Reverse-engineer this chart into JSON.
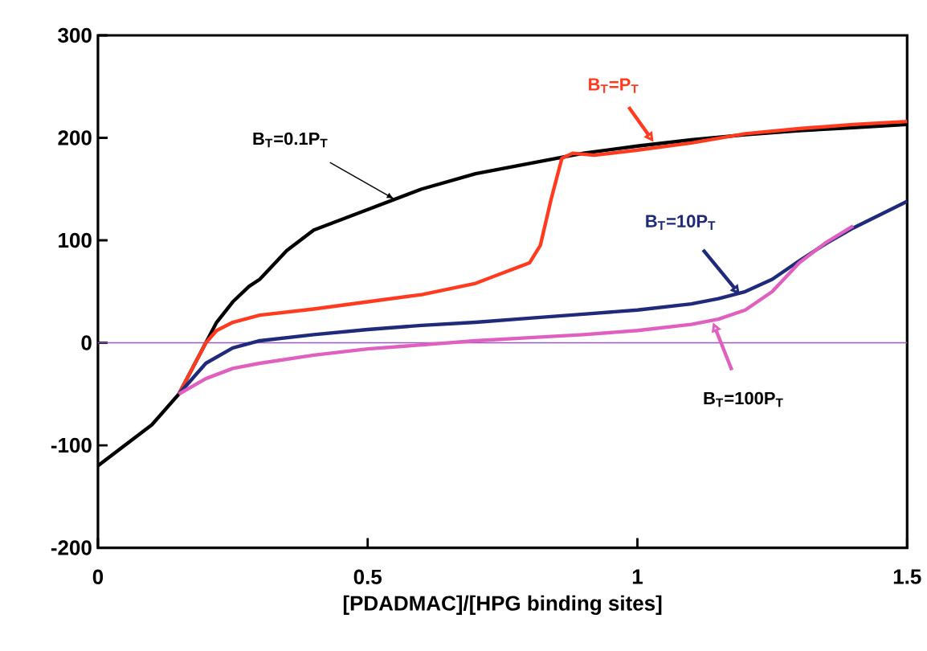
{
  "chart_data": {
    "type": "line",
    "xlabel": "[PDADMAC]/[HPG binding sites]",
    "xlim": [
      0,
      1.5
    ],
    "ylim": [
      -200,
      300
    ],
    "xticks": [
      0,
      0.5,
      1,
      1.5
    ],
    "yticks": [
      -200,
      -100,
      0,
      100,
      200,
      300
    ],
    "series": [
      {
        "color": "#000000",
        "x": [
          0,
          0.05,
          0.1,
          0.15,
          0.18,
          0.2,
          0.22,
          0.25,
          0.28,
          0.3,
          0.35,
          0.4,
          0.5,
          0.6,
          0.7,
          0.8,
          0.9,
          1.0,
          1.1,
          1.2,
          1.3,
          1.4,
          1.5
        ],
        "values": [
          -120,
          -100,
          -80,
          -50,
          -20,
          0,
          20,
          40,
          55,
          62,
          90,
          110,
          130,
          150,
          165,
          175,
          185,
          192,
          198,
          203,
          207,
          210,
          213
        ]
      },
      {
        "color": "#ff3b1f",
        "x": [
          0.15,
          0.18,
          0.2,
          0.22,
          0.25,
          0.3,
          0.4,
          0.5,
          0.6,
          0.7,
          0.75,
          0.78,
          0.8,
          0.82,
          0.84,
          0.86,
          0.88,
          0.92,
          1.0,
          1.1,
          1.2,
          1.3,
          1.4,
          1.5
        ],
        "values": [
          -50,
          -20,
          0,
          12,
          20,
          27,
          33,
          40,
          47,
          58,
          68,
          74,
          78,
          95,
          140,
          180,
          185,
          183,
          188,
          195,
          204,
          209,
          213,
          216
        ]
      },
      {
        "color": "#1f2a7a",
        "x": [
          0.15,
          0.2,
          0.25,
          0.3,
          0.4,
          0.5,
          0.6,
          0.7,
          0.8,
          0.9,
          1.0,
          1.1,
          1.15,
          1.2,
          1.25,
          1.3,
          1.35,
          1.4,
          1.45,
          1.5
        ],
        "values": [
          -50,
          -20,
          -5,
          2,
          8,
          13,
          17,
          20,
          24,
          28,
          32,
          38,
          43,
          50,
          62,
          80,
          97,
          112,
          125,
          138
        ]
      },
      {
        "color": "#e060c0",
        "x": [
          0.15,
          0.2,
          0.25,
          0.3,
          0.4,
          0.5,
          0.6,
          0.7,
          0.8,
          0.9,
          1.0,
          1.1,
          1.15,
          1.2,
          1.25,
          1.3,
          1.35,
          1.4
        ],
        "values": [
          -50,
          -35,
          -25,
          -20,
          -12,
          -6,
          -2,
          2,
          5,
          8,
          12,
          18,
          23,
          32,
          50,
          78,
          98,
          114
        ]
      }
    ],
    "ref_lines": [
      {
        "axis": "y",
        "value": 0,
        "color": "#9b59c0"
      }
    ],
    "annotations": [
      {
        "text": "B$_{T}$=0.1P$_{T}$",
        "x": 0.55,
        "y": 140
      },
      {
        "text": "B$_{T}$=P$_{T}$",
        "x": 1.03,
        "y": 196
      },
      {
        "text": "B$_{T}$=10P$_{T}$",
        "x": 1.19,
        "y": 47
      },
      {
        "text": "B$_{T}$=100P$_{T}$",
        "x": 1.14,
        "y": 20
      }
    ]
  }
}
